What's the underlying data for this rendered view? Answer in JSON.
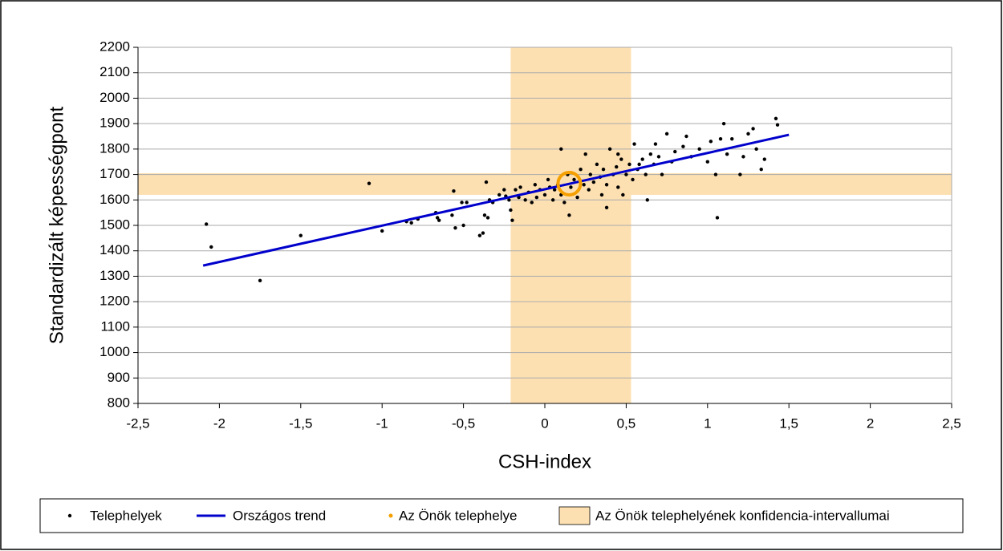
{
  "chart_data": {
    "type": "scatter",
    "x_label": "CSH-index",
    "y_label": "Standardizált képességpont",
    "xlim": [
      -2.5,
      2.5
    ],
    "ylim": [
      800,
      2200
    ],
    "xticks": [
      {
        "value": -2.5,
        "label": "-2,5"
      },
      {
        "value": -2,
        "label": "-2"
      },
      {
        "value": -1.5,
        "label": "-1,5"
      },
      {
        "value": -1,
        "label": "-1"
      },
      {
        "value": -0.5,
        "label": "-0,5"
      },
      {
        "value": 0,
        "label": "0"
      },
      {
        "value": 0.5,
        "label": "0,5"
      },
      {
        "value": 1,
        "label": "1"
      },
      {
        "value": 1.5,
        "label": "1,5"
      },
      {
        "value": 2,
        "label": "2"
      },
      {
        "value": 2.5,
        "label": "2,5"
      }
    ],
    "yticks": [
      800,
      900,
      1000,
      1100,
      1200,
      1300,
      1400,
      1500,
      1600,
      1700,
      1800,
      1900,
      2000,
      2100,
      2200
    ],
    "grid": true,
    "series": [
      {
        "type": "band",
        "name": "Az Önök telephelyének konfidencia-intervallumai",
        "color": "#fde0b2",
        "xrange": [
          -0.21,
          0.53
        ],
        "yrange": [
          1620,
          1705
        ]
      },
      {
        "type": "scatter",
        "name": "Telephelyek",
        "color": "#000000",
        "x": [
          -2.08,
          -2.05,
          -1.75,
          -1.5,
          -1.08,
          -1.0,
          -0.85,
          -0.82,
          -0.78,
          -0.67,
          -0.66,
          -0.65,
          -0.57,
          -0.56,
          -0.55,
          -0.51,
          -0.5,
          -0.48,
          -0.4,
          -0.38,
          -0.37,
          -0.36,
          -0.35,
          -0.34,
          -0.32,
          -0.28,
          -0.25,
          -0.24,
          -0.22,
          -0.21,
          -0.2,
          -0.18,
          -0.16,
          -0.15,
          -0.12,
          -0.1,
          -0.08,
          -0.06,
          -0.05,
          -0.03,
          0,
          0.02,
          0.03,
          0.05,
          0.06,
          0.08,
          0.1,
          0.12,
          0.14,
          0.15,
          0.16,
          0.18,
          0.2,
          0.22,
          0.24,
          0.25,
          0.27,
          0.28,
          0.3,
          0.32,
          0.34,
          0.35,
          0.36,
          0.38,
          0.4,
          0.42,
          0.44,
          0.45,
          0.47,
          0.5,
          0.52,
          0.54,
          0.55,
          0.57,
          0.6,
          0.62,
          0.63,
          0.65,
          0.67,
          0.7,
          0.72,
          0.75,
          0.78,
          0.8,
          0.85,
          0.87,
          0.9,
          0.95,
          1.0,
          1.02,
          1.05,
          1.06,
          1.08,
          1.1,
          1.12,
          1.15,
          1.2,
          1.22,
          1.25,
          1.28,
          1.3,
          1.33,
          1.35,
          1.42,
          1.43,
          0.1,
          0.38,
          0.45,
          0.58,
          0.68,
          0.48
        ],
        "values": [
          1505,
          1415,
          1283,
          1460,
          1665,
          1478,
          1515,
          1510,
          1525,
          1550,
          1530,
          1520,
          1540,
          1635,
          1490,
          1590,
          1500,
          1590,
          1460,
          1470,
          1540,
          1670,
          1530,
          1600,
          1590,
          1620,
          1640,
          1615,
          1600,
          1560,
          1520,
          1640,
          1610,
          1650,
          1600,
          1630,
          1590,
          1660,
          1610,
          1640,
          1620,
          1680,
          1650,
          1600,
          1640,
          1660,
          1620,
          1590,
          1700,
          1540,
          1650,
          1680,
          1610,
          1720,
          1660,
          1780,
          1640,
          1700,
          1670,
          1740,
          1690,
          1620,
          1720,
          1660,
          1800,
          1700,
          1730,
          1650,
          1760,
          1700,
          1740,
          1680,
          1820,
          1720,
          1760,
          1700,
          1600,
          1780,
          1740,
          1770,
          1700,
          1860,
          1750,
          1790,
          1810,
          1850,
          1770,
          1800,
          1750,
          1830,
          1700,
          1530,
          1840,
          1900,
          1780,
          1840,
          1700,
          1770,
          1860,
          1880,
          1800,
          1720,
          1760,
          1920,
          1895,
          1800,
          1570,
          1780,
          1740,
          1820,
          1620
        ]
      },
      {
        "type": "line",
        "name": "Országos trend",
        "color": "#0000cc",
        "x": [
          -2.1,
          1.5
        ],
        "values": [
          1342,
          1856
        ]
      },
      {
        "type": "point",
        "name": "Az Önök telephelye",
        "color": "#f5a000",
        "x": [
          0.15
        ],
        "values": [
          1664
        ]
      }
    ]
  }
}
